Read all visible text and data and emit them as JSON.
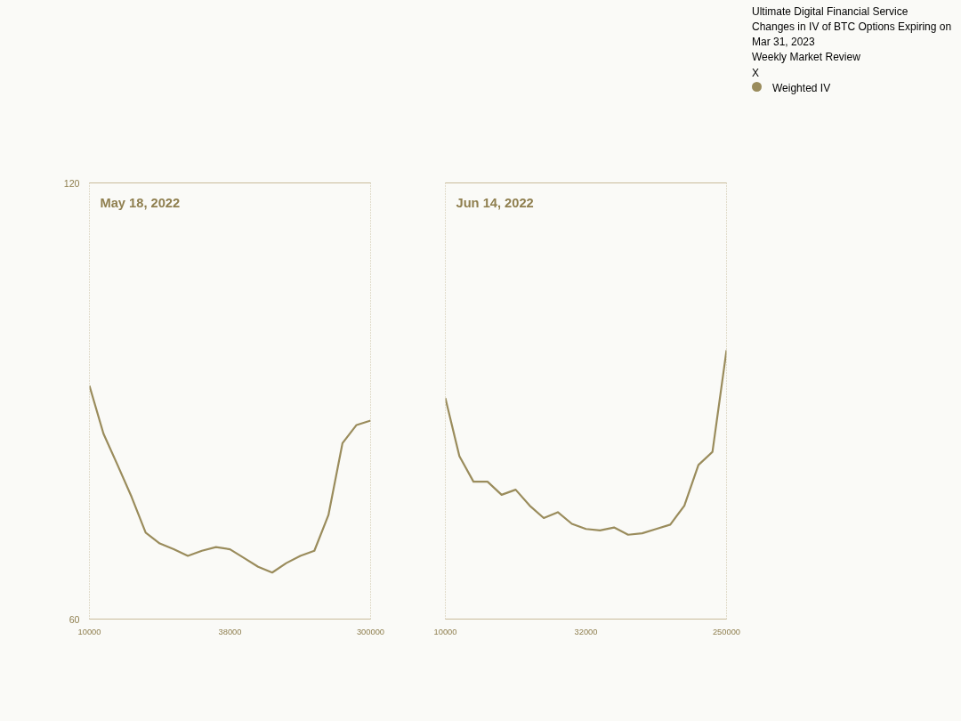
{
  "chart_data": [
    {
      "type": "line",
      "title": "May 18, 2022",
      "categories": [
        "10000",
        null,
        null,
        null,
        null,
        null,
        null,
        null,
        null,
        null,
        "38000",
        null,
        null,
        null,
        null,
        null,
        null,
        null,
        null,
        null,
        "300000"
      ],
      "series": [
        {
          "color": "#9a8c5c",
          "values": [
            92.1,
            85.5,
            81.2,
            76.8,
            71.9,
            70.4,
            69.6,
            68.7,
            69.4,
            69.9,
            69.6,
            68.4,
            67.2,
            66.4,
            67.7,
            68.7,
            69.4,
            74.3,
            84.2,
            86.7,
            87.3
          ]
        }
      ],
      "ylim": [
        60,
        120
      ],
      "yticks": [
        60,
        120
      ],
      "grid": false,
      "legend": false
    },
    {
      "type": "line",
      "title": "Jun 14, 2022",
      "categories": [
        "10000",
        null,
        null,
        null,
        null,
        null,
        null,
        null,
        null,
        null,
        "32000",
        null,
        null,
        null,
        null,
        null,
        null,
        null,
        null,
        null,
        "250000"
      ],
      "series": [
        {
          "name": "Weighted IV",
          "color": "#9a8c5c",
          "values": [
            90.4,
            82.4,
            78.9,
            78.9,
            77.1,
            77.8,
            75.6,
            73.9,
            74.7,
            73.1,
            72.4,
            72.2,
            72.6,
            71.6,
            71.8,
            72.4,
            73.0,
            75.6,
            81.2,
            83.0,
            97.0
          ]
        }
      ],
      "ylim": [
        60,
        120
      ],
      "tick_labels": "x",
      "grid": false,
      "legend": "right",
      "annotations": [
        "Ultimate Digital Financial Service",
        "Changes in IV of BTC Options Expiring on Mar 31, 2023",
        "Weekly Market Review",
        "X"
      ]
    }
  ]
}
